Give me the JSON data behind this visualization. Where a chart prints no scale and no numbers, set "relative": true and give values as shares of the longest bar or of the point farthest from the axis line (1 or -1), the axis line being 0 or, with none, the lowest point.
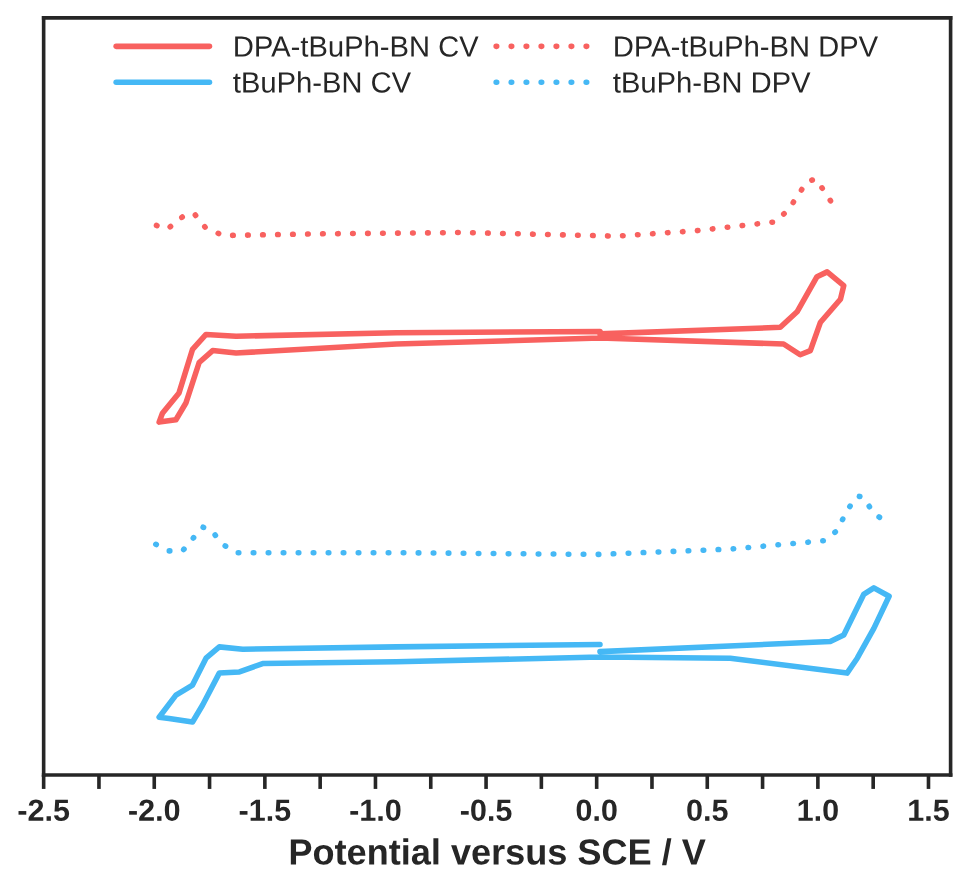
{
  "chart_data": {
    "type": "line",
    "relative": true,
    "xlabel": "Potential versus SCE / V",
    "xlim": [
      -2.5,
      1.6
    ],
    "xticks": [
      -2.5,
      {
        "value": -2.25,
        "label": null
      },
      {
        "value": -2,
        "label": "-2.0"
      },
      {
        "value": -1.75,
        "label": null
      },
      -1.5,
      {
        "value": -1.25,
        "label": null
      },
      {
        "value": -1,
        "label": "-1.0"
      },
      {
        "value": -0.75,
        "label": null
      },
      -0.5,
      {
        "value": -0.25,
        "label": null
      },
      {
        "value": 0,
        "label": "0.0"
      },
      {
        "value": 0.25,
        "label": null
      },
      0.5,
      {
        "value": 0.75,
        "label": null
      },
      {
        "value": 1,
        "label": "1.0"
      },
      {
        "value": 1.25,
        "label": null
      },
      1.5
    ],
    "legend": "top",
    "grid": false,
    "marker": "none",
    "tick_labels": "x",
    "series": [
      {
        "name": "DPA-tBuPh-BN CV",
        "color": "#f8615f",
        "line_style": "solid",
        "x": [
          0.015,
          -0.906,
          -1.63,
          -1.766,
          -1.827,
          -1.888,
          -1.963,
          -1.978,
          -1.902,
          -1.857,
          -1.797,
          -1.736,
          -1.63,
          -0.906,
          0.015,
          0.845,
          0.92,
          0.966,
          1.011,
          1.102,
          1.117,
          1.042,
          0.996,
          0.906,
          0.83,
          0.015
        ],
        "values": [
          0.744,
          0.742,
          0.736,
          0.739,
          0.714,
          0.641,
          0.607,
          0.592,
          0.596,
          0.624,
          0.692,
          0.712,
          0.708,
          0.723,
          0.733,
          0.723,
          0.705,
          0.712,
          0.759,
          0.798,
          0.821,
          0.844,
          0.836,
          0.777,
          0.751,
          0.74
        ]
      },
      {
        "name": "DPA-tBuPh-BN DPV",
        "color": "#f8615f",
        "line_style": "dotted",
        "x": [
          -1.99,
          -1.94,
          -1.87,
          -1.82,
          -1.77,
          -1.69,
          -1.21,
          -0.6,
          0.09,
          0.45,
          0.81,
          0.87,
          0.95,
          0.99,
          1.03,
          1.08
        ],
        "values": [
          0.922,
          0.916,
          0.937,
          0.942,
          0.919,
          0.905,
          0.908,
          0.91,
          0.904,
          0.913,
          0.928,
          0.95,
          0.995,
          1.0,
          0.979,
          0.95
        ]
      },
      {
        "name": "tBuPh-BN CV",
        "color": "#45b8f5",
        "line_style": "solid",
        "x": [
          0.015,
          -0.906,
          -1.6,
          -1.706,
          -1.766,
          -1.827,
          -1.902,
          -1.978,
          -1.933,
          -1.827,
          -1.782,
          -1.706,
          -1.615,
          -1.51,
          -0.906,
          0.015,
          0.604,
          1.132,
          1.178,
          1.253,
          1.322,
          1.253,
          1.207,
          1.117,
          1.056,
          0.015
        ],
        "values": [
          0.219,
          0.215,
          0.211,
          0.215,
          0.196,
          0.151,
          0.134,
          0.097,
          0.095,
          0.089,
          0.117,
          0.171,
          0.173,
          0.187,
          0.19,
          0.198,
          0.196,
          0.171,
          0.196,
          0.246,
          0.3,
          0.314,
          0.303,
          0.235,
          0.224,
          0.207
        ]
      },
      {
        "name": "tBuPh-BN DPV",
        "color": "#45b8f5",
        "line_style": "dotted",
        "x": [
          -1.993,
          -1.933,
          -1.872,
          -1.827,
          -1.782,
          -1.745,
          -1.691,
          -1.63,
          -0.906,
          0.0,
          0.604,
          1.026,
          1.087,
          1.132,
          1.178,
          1.207,
          1.253,
          1.304
        ],
        "values": [
          0.387,
          0.376,
          0.376,
          0.396,
          0.416,
          0.412,
          0.387,
          0.373,
          0.373,
          0.37,
          0.379,
          0.393,
          0.41,
          0.444,
          0.468,
          0.466,
          0.438,
          0.427
        ]
      }
    ]
  }
}
